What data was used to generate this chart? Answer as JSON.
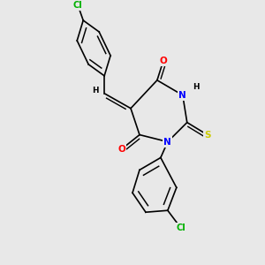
{
  "bg_color": "#e8e8e8",
  "bond_color": "#000000",
  "atom_colors": {
    "Cl": "#00b000",
    "O": "#ff0000",
    "N": "#0000ff",
    "S": "#cccc00",
    "C": "#000000",
    "H": "#000000"
  },
  "font_size": 7.5,
  "line_width": 1.2
}
